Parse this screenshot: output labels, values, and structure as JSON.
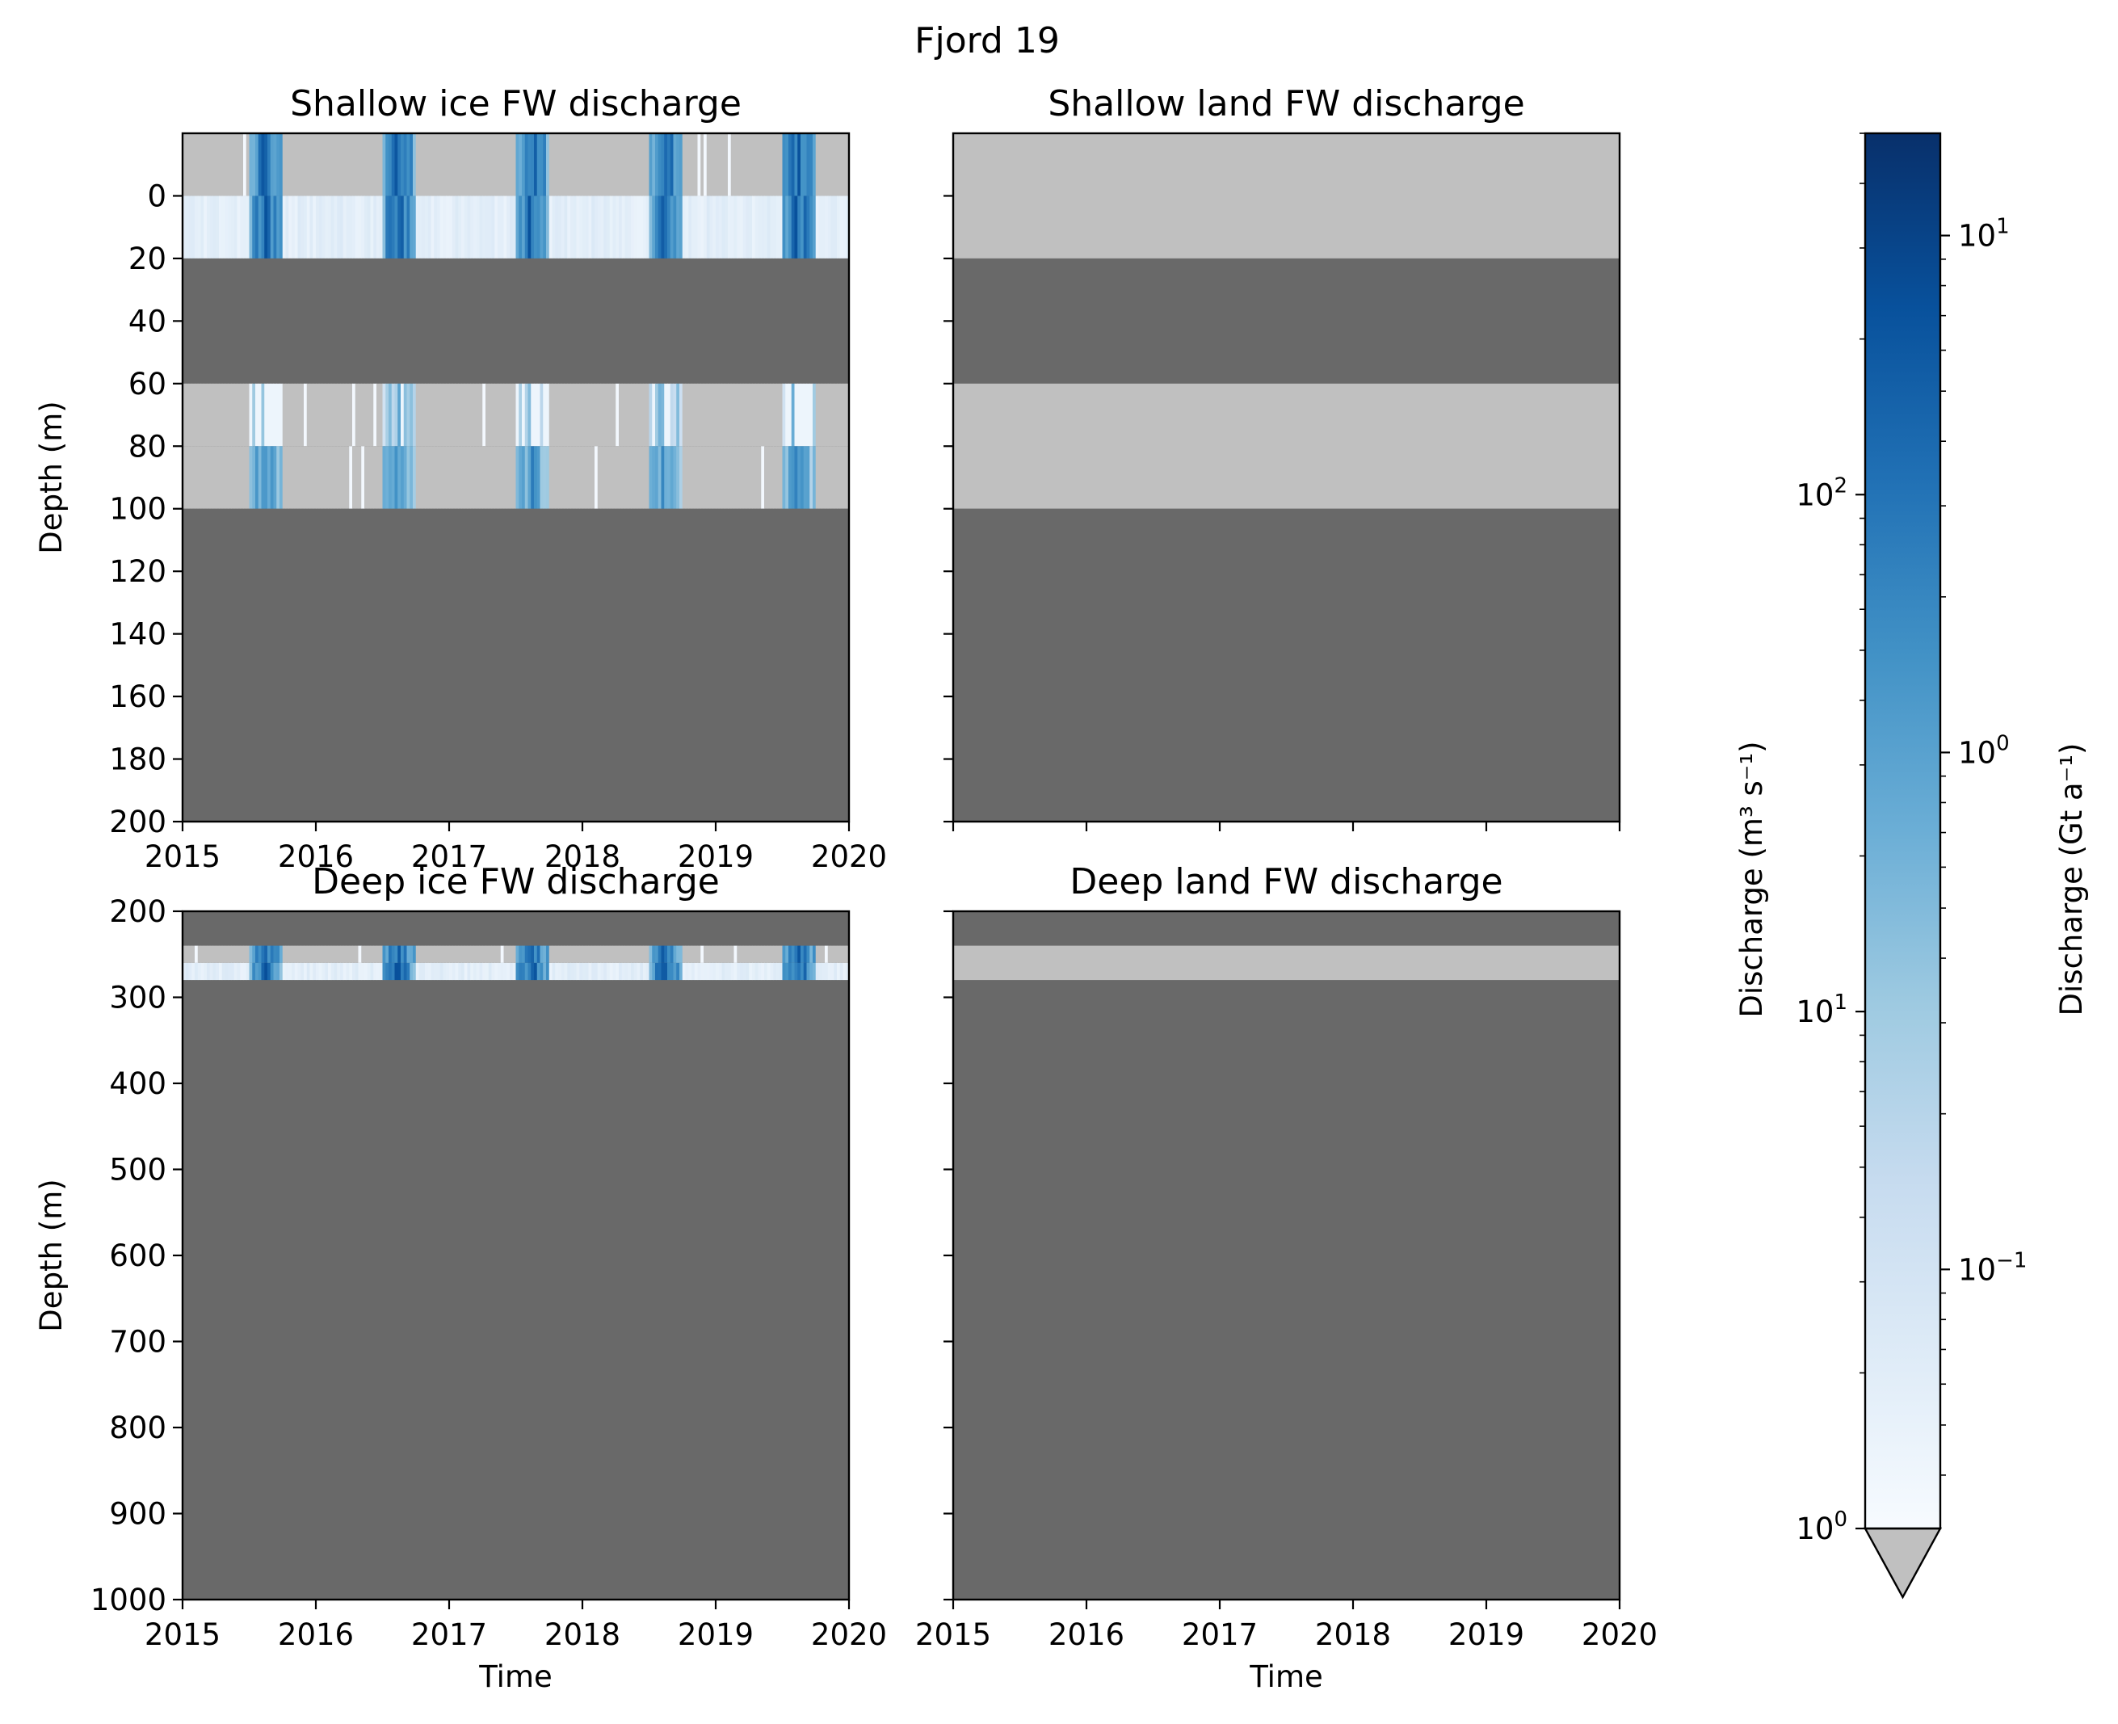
{
  "figure": {
    "suptitle": "Fjord 19"
  },
  "colors": {
    "no_data": "#c0c0c0",
    "masked": "#696969",
    "cmap": [
      "#f7fbff",
      "#deebf7",
      "#c6dbef",
      "#9ecae1",
      "#6baed6",
      "#4292c6",
      "#2171b5",
      "#08519c",
      "#08306b"
    ]
  },
  "chart_data": [
    {
      "type": "heatmap",
      "title": "Shallow ice FW discharge",
      "xlabel": "",
      "ylabel": "Depth (m)",
      "xlim": [
        2015,
        2020
      ],
      "ylim": [
        -20,
        200
      ],
      "xticks": [
        "2015",
        "2016",
        "2017",
        "2018",
        "2019",
        "2020"
      ],
      "yticks": [
        "0",
        "20",
        "40",
        "60",
        "80",
        "100",
        "120",
        "140",
        "160",
        "180",
        "200"
      ],
      "layers": [
        {
          "top": -20,
          "bottom": 0,
          "state": "pulses",
          "base": "no_data"
        },
        {
          "top": 0,
          "bottom": 20,
          "state": "pulses",
          "base": "low"
        },
        {
          "top": 20,
          "bottom": 60,
          "state": "masked"
        },
        {
          "top": 60,
          "bottom": 80,
          "state": "pulses",
          "base": "no_data",
          "level": "faint"
        },
        {
          "top": 80,
          "bottom": 100,
          "state": "pulses",
          "base": "no_data",
          "level": "mid"
        },
        {
          "top": 100,
          "bottom": 200,
          "state": "masked"
        }
      ],
      "pulses": [
        2015.5,
        2016.5,
        2017.5,
        2018.5,
        2019.5
      ]
    },
    {
      "type": "heatmap",
      "title": "Shallow land FW discharge",
      "xlabel": "",
      "ylabel": "",
      "xlim": [
        2015,
        2020
      ],
      "ylim": [
        -20,
        200
      ],
      "xticks": [],
      "yticks": [],
      "layers": [
        {
          "top": -20,
          "bottom": 20,
          "state": "no_data"
        },
        {
          "top": 20,
          "bottom": 60,
          "state": "masked"
        },
        {
          "top": 60,
          "bottom": 100,
          "state": "no_data"
        },
        {
          "top": 100,
          "bottom": 200,
          "state": "masked"
        }
      ],
      "pulses": []
    },
    {
      "type": "heatmap",
      "title": "Deep ice FW discharge",
      "xlabel": "Time",
      "ylabel": "Depth (m)",
      "xlim": [
        2015,
        2020
      ],
      "ylim": [
        200,
        1000
      ],
      "xticks": [
        "2015",
        "2016",
        "2017",
        "2018",
        "2019",
        "2020"
      ],
      "yticks": [
        "200",
        "300",
        "400",
        "500",
        "600",
        "700",
        "800",
        "900",
        "1000"
      ],
      "layers": [
        {
          "top": 200,
          "bottom": 240,
          "state": "masked"
        },
        {
          "top": 240,
          "bottom": 260,
          "state": "pulses",
          "base": "no_data"
        },
        {
          "top": 260,
          "bottom": 280,
          "state": "pulses",
          "base": "low"
        },
        {
          "top": 280,
          "bottom": 1000,
          "state": "masked"
        }
      ],
      "pulses": [
        2015.5,
        2016.5,
        2017.5,
        2018.5,
        2019.5
      ]
    },
    {
      "type": "heatmap",
      "title": "Deep land FW discharge",
      "xlabel": "Time",
      "ylabel": "",
      "xlim": [
        2015,
        2020
      ],
      "ylim": [
        200,
        1000
      ],
      "xticks": [
        "2015",
        "2016",
        "2017",
        "2018",
        "2019",
        "2020"
      ],
      "yticks": [],
      "layers": [
        {
          "top": 200,
          "bottom": 240,
          "state": "masked"
        },
        {
          "top": 240,
          "bottom": 280,
          "state": "no_data"
        },
        {
          "top": 280,
          "bottom": 1000,
          "state": "masked"
        }
      ],
      "pulses": []
    }
  ],
  "colorbar": {
    "extend": "min",
    "left_label": "Discharge (m³ s⁻¹)",
    "right_label": "Discharge (Gt a⁻¹)",
    "left_scale": "log",
    "left_range": [
      1,
      500
    ],
    "left_ticks": [
      {
        "value": 1,
        "base": "10",
        "exp": "0"
      },
      {
        "value": 10,
        "base": "10",
        "exp": "1"
      },
      {
        "value": 100,
        "base": "10",
        "exp": "2"
      }
    ],
    "right_ticks": [
      {
        "value": 0.1,
        "base": "10",
        "exp": "−1"
      },
      {
        "value": 1,
        "base": "10",
        "exp": "0"
      },
      {
        "value": 10,
        "base": "10",
        "exp": "1"
      }
    ]
  }
}
